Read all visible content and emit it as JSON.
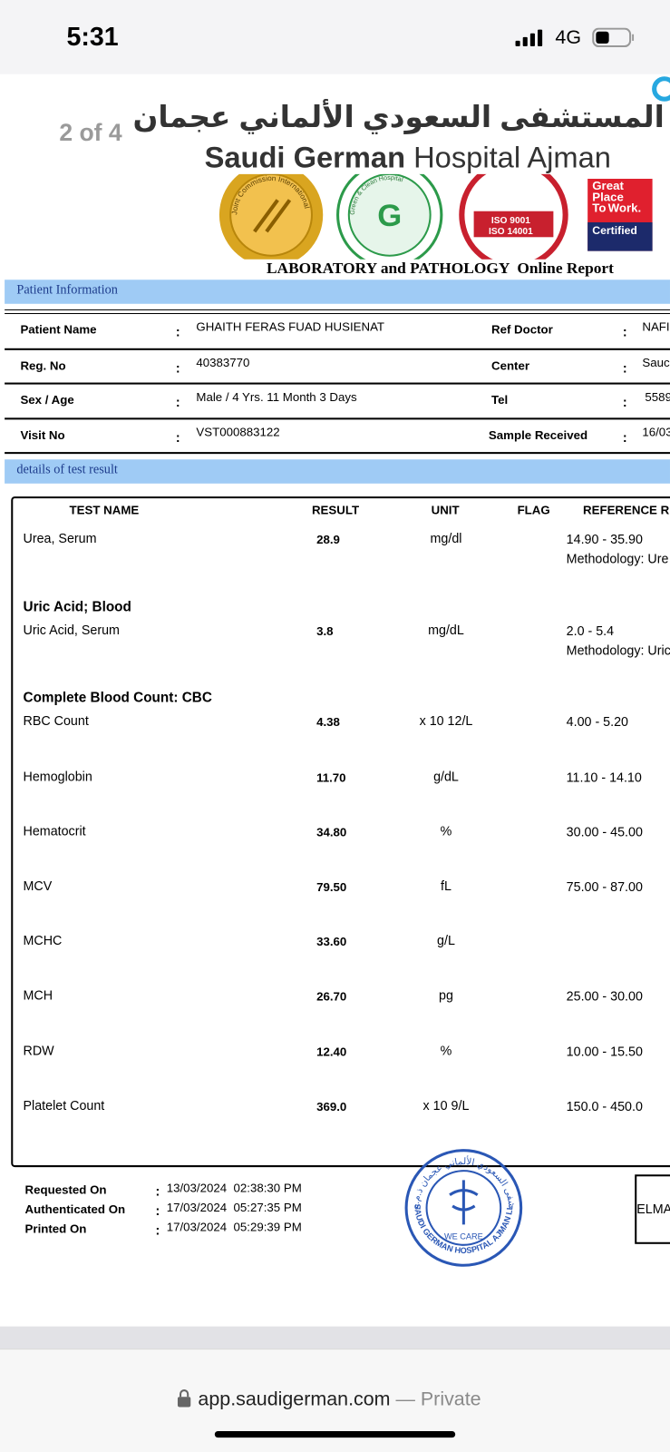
{
  "status_bar": {
    "time": "5:31",
    "network": "4G"
  },
  "viewer": {
    "page_indicator": "2 of 4"
  },
  "header": {
    "arabic_name": "المستشفى السعودي الألماني عجمان",
    "english_name_bold": "Saudi German",
    "english_name_rest": "Hospital Ajman",
    "badges": {
      "jci": "Joint Commission International",
      "green": "Green & Clean Hospital",
      "iso_lines": [
        "ISO 9001",
        "ISO 14001"
      ],
      "gptw_lines": [
        "Great",
        "Place",
        "To",
        "Work.",
        "Certified"
      ]
    },
    "report_title": "LABORATORY and PATHOLOGY  Online Report"
  },
  "separator": ":",
  "patient_section": {
    "title": "Patient Information",
    "rows": [
      [
        "Patient Name",
        "GHAITH FERAS FUAD  HUSIENAT",
        "Ref Doctor",
        "NAFI"
      ],
      [
        "Reg. No",
        "40383770",
        "Center",
        "Sauc"
      ],
      [
        "Sex / Age",
        "Male / 4 Yrs. 11 Month 3 Days",
        "Tel",
        "5589"
      ],
      [
        "Visit No",
        "VST000883122",
        "Sample Received",
        "16/03"
      ]
    ]
  },
  "results_section": {
    "title": "details of test result",
    "columns": [
      "TEST NAME",
      "RESULT",
      "UNIT",
      "FLAG",
      "REFERENCE R"
    ],
    "rows": [
      {
        "test": "Urea, Serum",
        "result": "28.9",
        "unit": "mg/dl",
        "reference": "14.90 - 35.90",
        "method": "Methodology: Ure"
      },
      {
        "group": "Uric Acid; Blood"
      },
      {
        "test": "Uric Acid, Serum",
        "result": "3.8",
        "unit": "mg/dL",
        "reference": "2.0 - 5.4",
        "method": "Methodology: Uric"
      },
      {
        "group": "Complete Blood Count: CBC"
      },
      {
        "test": "RBC Count",
        "result": "4.38",
        "unit": "x 10 12/L",
        "reference": "4.00 - 5.20"
      },
      {
        "test": "Hemoglobin",
        "result": "11.70",
        "unit": "g/dL",
        "reference": "11.10 - 14.10"
      },
      {
        "test": "Hematocrit",
        "result": "34.80",
        "unit": "%",
        "reference": "30.00 - 45.00"
      },
      {
        "test": "MCV",
        "result": "79.50",
        "unit": "fL",
        "reference": "75.00 - 87.00"
      },
      {
        "test": "MCHC",
        "result": "33.60",
        "unit": "g/L"
      },
      {
        "test": "MCH",
        "result": "26.70",
        "unit": "pg",
        "reference": "25.00 - 30.00"
      },
      {
        "test": "RDW",
        "result": "12.40",
        "unit": "%",
        "reference": "10.00 - 15.50"
      },
      {
        "test": "Platelet Count",
        "result": "369.0",
        "unit": "x 10 9/L",
        "reference": "150.0 - 450.0"
      }
    ]
  },
  "footer": {
    "dates": [
      [
        "Requested On",
        "13/03/2024  02:38:30 PM"
      ],
      [
        "Authenticated On",
        "17/03/2024  05:27:35 PM"
      ],
      [
        "Printed On",
        "17/03/2024  05:29:39 PM"
      ]
    ],
    "stamp_arabic": "المستشفى السعودي الألماني عجمان ذ.م.م",
    "stamp_english": "SAUDI GERMAN HOSPITAL AJMAN LLC",
    "stamp_motto": "WE CARE",
    "signature_box": "ELMA"
  },
  "browser": {
    "url": "app.saudigerman.com",
    "privacy": "— Private"
  }
}
